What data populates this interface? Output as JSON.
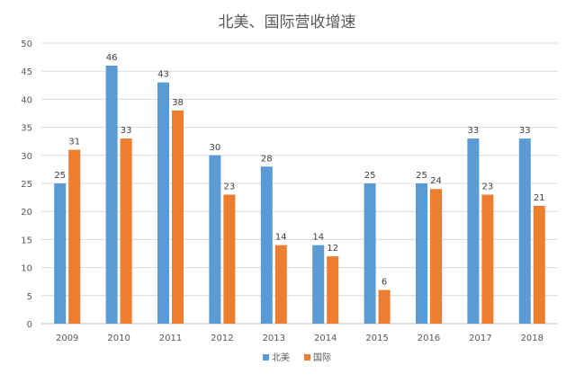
{
  "chart_data": {
    "type": "bar",
    "title": "北美、国际营收增速",
    "categories": [
      "2009",
      "2010",
      "2011",
      "2012",
      "2013",
      "2014",
      "2015",
      "2016",
      "2017",
      "2018"
    ],
    "series": [
      {
        "name": "北美",
        "values": [
          25,
          46,
          43,
          30,
          28,
          14,
          25,
          25,
          33,
          33
        ],
        "color": "#5B9BD5"
      },
      {
        "name": "国际",
        "values": [
          31,
          33,
          38,
          23,
          14,
          12,
          6,
          24,
          23,
          21
        ],
        "color": "#ED7D31"
      }
    ],
    "ylim": [
      0,
      50
    ],
    "yticks": [
      0,
      5,
      10,
      15,
      20,
      25,
      30,
      35,
      40,
      45,
      50
    ],
    "grid": true,
    "legend_position": "bottom",
    "data_labels": true
  }
}
